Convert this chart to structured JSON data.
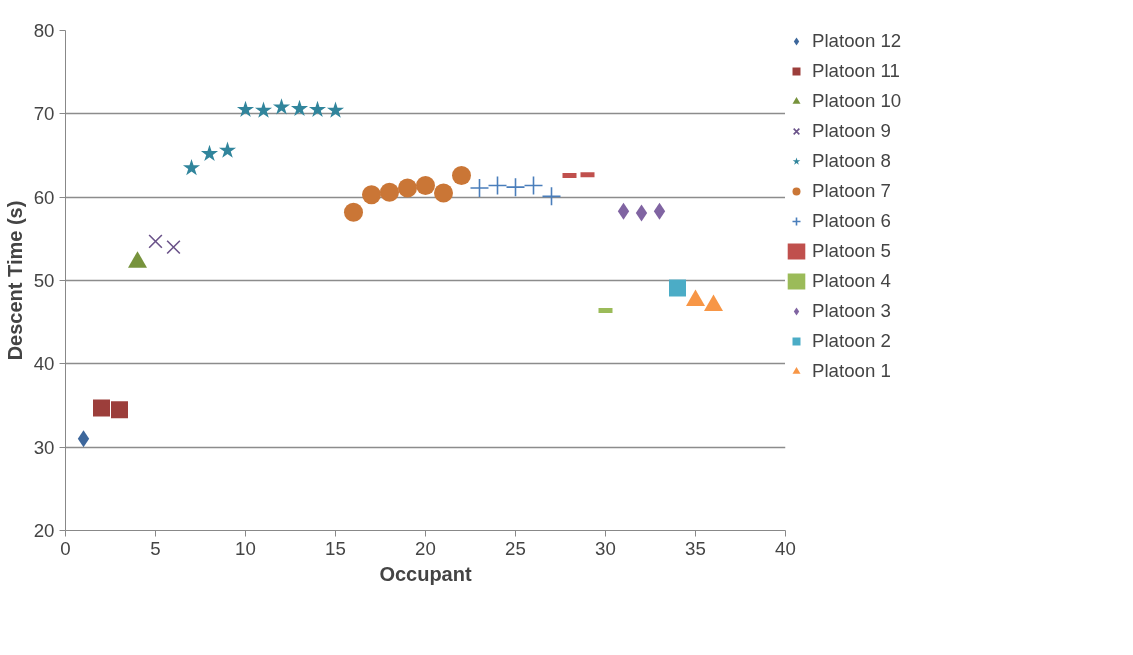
{
  "chart_data": {
    "type": "scatter",
    "xlabel": "Occupant",
    "ylabel": "Descent Time (s)",
    "xlim": [
      0,
      40
    ],
    "xticks": [
      0,
      5,
      10,
      15,
      20,
      25,
      30,
      35,
      40
    ],
    "ylim": [
      20,
      80
    ],
    "yticks": [
      20,
      30,
      40,
      50,
      60,
      70,
      80
    ],
    "grid": "y",
    "legend": "right",
    "series": [
      {
        "name": "Platoon 12",
        "color": "#3d679c",
        "marker": "diamond",
        "x": [
          1
        ],
        "values": [
          31
        ]
      },
      {
        "name": "Platoon 11",
        "color": "#9c3e3b",
        "marker": "square",
        "x": [
          2,
          3
        ],
        "values": [
          34.7,
          34.5
        ]
      },
      {
        "name": "Platoon 10",
        "color": "#77933c",
        "marker": "triangle",
        "x": [
          4
        ],
        "values": [
          52.2
        ]
      },
      {
        "name": "Platoon 9",
        "color": "#6a5289",
        "marker": "x",
        "x": [
          5,
          6
        ],
        "values": [
          54.7,
          54
        ]
      },
      {
        "name": "Platoon 8",
        "color": "#31859c",
        "marker": "star",
        "x": [
          7,
          8,
          9,
          10,
          11,
          12,
          13,
          14,
          15
        ],
        "values": [
          63.5,
          65.2,
          65.6,
          70.5,
          70.4,
          70.8,
          70.6,
          70.5,
          70.4
        ]
      },
      {
        "name": "Platoon 7",
        "color": "#ca7636",
        "marker": "circle",
        "x": [
          16,
          17,
          18,
          19,
          20,
          21,
          22
        ],
        "values": [
          58.2,
          60.3,
          60.6,
          61.1,
          61.4,
          60.5,
          62.6
        ]
      },
      {
        "name": "Platoon 6",
        "color": "#4a7ebb",
        "marker": "cross",
        "x": [
          23,
          24,
          25,
          26,
          27
        ],
        "values": [
          61.1,
          61.4,
          61.2,
          61.4,
          60.1
        ]
      },
      {
        "name": "Platoon 5",
        "color": "#c0504d",
        "x": [
          28,
          29
        ],
        "values": [
          62.6,
          62.7
        ]
      },
      {
        "name": "Platoon 4",
        "color": "#9bbb59",
        "x": [
          30
        ],
        "values": [
          46.4
        ]
      },
      {
        "name": "Platoon 3",
        "color": "#8064a2",
        "marker": "diamond",
        "x": [
          31,
          32,
          33
        ],
        "values": [
          58.3,
          58.1,
          58.3
        ]
      },
      {
        "name": "Platoon 2",
        "color": "#4bacc6",
        "marker": "square",
        "x": [
          34
        ],
        "values": [
          49.1
        ]
      },
      {
        "name": "Platoon 1",
        "color": "#f79646",
        "marker": "triangle",
        "x": [
          35,
          36
        ],
        "values": [
          47.6,
          47.0
        ]
      }
    ]
  }
}
